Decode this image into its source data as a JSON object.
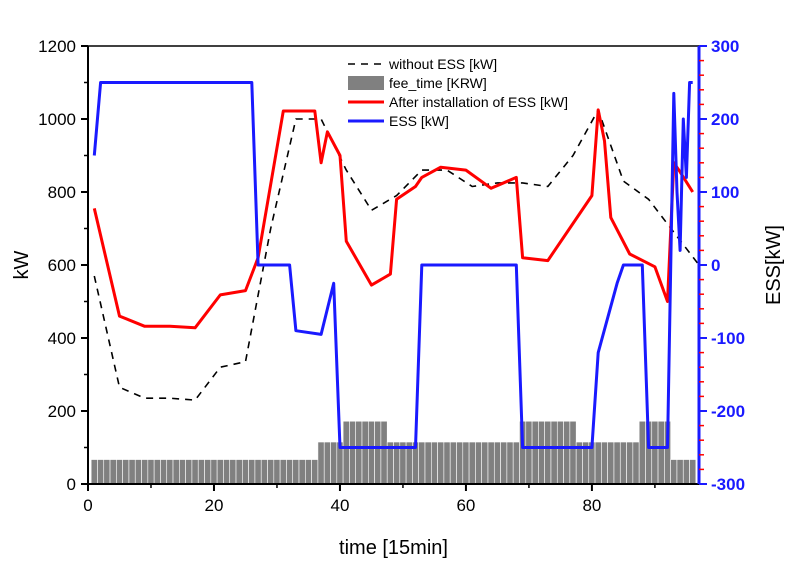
{
  "chart_data": {
    "type": "line",
    "x_axis": {
      "label": "time [15min]",
      "range": [
        0,
        97
      ],
      "ticks": [
        0,
        20,
        40,
        60,
        80
      ]
    },
    "y_axis_left": {
      "label": "kW",
      "range": [
        0,
        1200
      ],
      "ticks": [
        0,
        200,
        400,
        600,
        800,
        1000,
        1200
      ]
    },
    "y_axis_right": {
      "label": "ESS[kW]",
      "range": [
        -300,
        300
      ],
      "ticks": [
        -300,
        -200,
        -100,
        0,
        100,
        200,
        300
      ],
      "color": "#1a1aff",
      "minor_tick_color": "#ff0000"
    },
    "legend": {
      "placement": "top-center",
      "entries": [
        {
          "series": "without_ess",
          "label": "without ESS [kW]"
        },
        {
          "series": "fee_time",
          "label": "fee_time [KRW]"
        },
        {
          "series": "after_ess",
          "label": "After installation of ESS [kW]"
        },
        {
          "series": "ess",
          "label": "ESS [kW]"
        }
      ]
    },
    "series": {
      "fee_time": {
        "name": "fee_time [KRW]",
        "type": "bar",
        "axis": "left",
        "color": "#808080",
        "x": [
          1,
          2,
          3,
          4,
          5,
          6,
          7,
          8,
          9,
          10,
          11,
          12,
          13,
          14,
          15,
          16,
          17,
          18,
          19,
          20,
          21,
          22,
          23,
          24,
          25,
          26,
          27,
          28,
          29,
          30,
          31,
          32,
          33,
          34,
          35,
          36,
          37,
          38,
          39,
          40,
          41,
          42,
          43,
          44,
          45,
          46,
          47,
          48,
          49,
          50,
          51,
          52,
          53,
          54,
          55,
          56,
          57,
          58,
          59,
          60,
          61,
          62,
          63,
          64,
          65,
          66,
          67,
          68,
          69,
          70,
          71,
          72,
          73,
          74,
          75,
          76,
          77,
          78,
          79,
          80,
          81,
          82,
          83,
          84,
          85,
          86,
          87,
          88,
          89,
          90,
          91,
          92,
          93,
          94,
          95,
          96
        ],
        "values": [
          67,
          67,
          67,
          67,
          67,
          67,
          67,
          67,
          67,
          67,
          67,
          67,
          67,
          67,
          67,
          67,
          67,
          67,
          67,
          67,
          67,
          67,
          67,
          67,
          67,
          67,
          67,
          67,
          67,
          67,
          67,
          67,
          67,
          67,
          67,
          67,
          115,
          115,
          115,
          115,
          172,
          172,
          172,
          172,
          172,
          172,
          172,
          115,
          115,
          115,
          115,
          115,
          115,
          115,
          115,
          115,
          115,
          115,
          115,
          115,
          115,
          115,
          115,
          115,
          115,
          115,
          115,
          115,
          172,
          172,
          172,
          172,
          172,
          172,
          172,
          172,
          172,
          115,
          115,
          115,
          115,
          115,
          115,
          115,
          115,
          115,
          115,
          172,
          172,
          172,
          172,
          172,
          67,
          67,
          67,
          67
        ]
      },
      "without_ess": {
        "name": "without ESS [kW]",
        "axis": "left",
        "color": "#000000",
        "dash": "dashed",
        "x": [
          1,
          5,
          9,
          13,
          17,
          21,
          25,
          29,
          33,
          37,
          41,
          45,
          49,
          53,
          57,
          61,
          65,
          69,
          73,
          77,
          81,
          85,
          89,
          93,
          97
        ],
        "y": [
          570,
          265,
          235,
          235,
          230,
          320,
          335,
          700,
          1000,
          1000,
          860,
          750,
          790,
          860,
          860,
          815,
          825,
          825,
          815,
          900,
          1025,
          830,
          780,
          690,
          600
        ]
      },
      "after_ess": {
        "name": "After installation of ESS [kW]",
        "axis": "left",
        "color": "#ff0000",
        "x": [
          1,
          5,
          9,
          13,
          17,
          21,
          25,
          27,
          31,
          36,
          37,
          38,
          40,
          41,
          45,
          48,
          49,
          52,
          53,
          56,
          60,
          64,
          68,
          69,
          73,
          80,
          81,
          82,
          83,
          86,
          90,
          92,
          93,
          94,
          96
        ],
        "y": [
          755,
          460,
          432,
          432,
          428,
          518,
          530,
          620,
          1022,
          1022,
          880,
          965,
          900,
          665,
          545,
          575,
          780,
          815,
          840,
          868,
          860,
          810,
          840,
          620,
          612,
          790,
          1025,
          940,
          730,
          630,
          595,
          500,
          880,
          855,
          800
        ]
      },
      "ess": {
        "name": "ESS [kW]",
        "axis": "right",
        "color": "#1a1aff",
        "x": [
          1,
          2,
          26,
          27,
          32,
          33,
          37,
          38,
          39,
          40,
          41,
          52,
          53,
          68,
          69,
          80,
          81,
          84,
          85,
          88,
          89,
          92,
          93,
          93.5,
          94,
          94.5,
          95,
          95.5,
          96
        ],
        "y": [
          150,
          250,
          250,
          0,
          0,
          -90,
          -95,
          -60,
          -25,
          -250,
          -250,
          -250,
          0,
          0,
          -250,
          -250,
          -120,
          -25,
          0,
          0,
          -250,
          -250,
          235,
          100,
          20,
          200,
          120,
          250,
          250
        ]
      }
    }
  }
}
